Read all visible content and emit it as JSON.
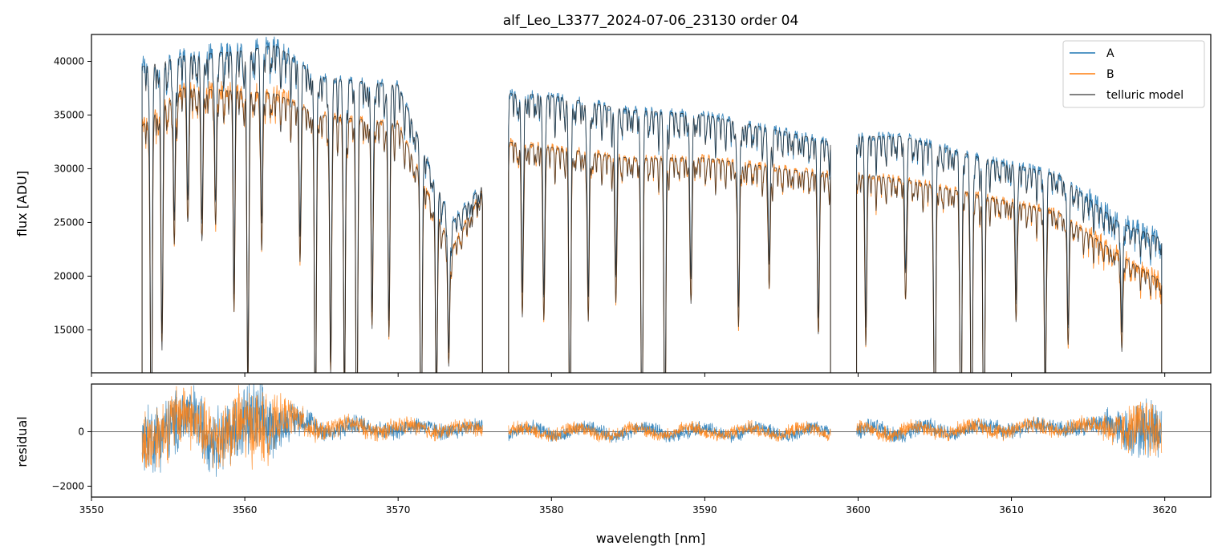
{
  "chart_data": [
    {
      "type": "line",
      "title": "alf_Leo_L3377_2024-07-06_23130  order 04",
      "xlabel": "",
      "ylabel": "flux [ADU]",
      "xlim": [
        3550,
        3623
      ],
      "ylim": [
        11000,
        42500
      ],
      "xticks": [
        3550,
        3560,
        3570,
        3580,
        3590,
        3600,
        3610,
        3620
      ],
      "yticks": [
        15000,
        20000,
        25000,
        30000,
        35000,
        40000
      ],
      "legend": {
        "placement": "top-right",
        "entries": [
          "A",
          "B",
          "telluric model"
        ]
      },
      "segments": [
        [
          3553.3,
          3575.5
        ],
        [
          3577.2,
          3598.2
        ],
        [
          3599.9,
          3619.8
        ]
      ],
      "continuum": {
        "A": {
          "x": [
            3553.3,
            3556,
            3560,
            3562,
            3565,
            3570,
            3573.5,
            3575.5,
            3577.2,
            3580,
            3585,
            3590,
            3595,
            3598.2,
            3599.9,
            3603,
            3608,
            3613,
            3617,
            3619.8
          ],
          "y": [
            39500,
            40500,
            41000,
            41500,
            38500,
            37800,
            25000,
            28500,
            37000,
            36800,
            35500,
            35000,
            33500,
            32500,
            33000,
            33000,
            31000,
            29500,
            25000,
            23500
          ]
        },
        "B": {
          "x": [
            3553.3,
            3556,
            3560,
            3562,
            3565,
            3570,
            3573.5,
            3575.5,
            3577.2,
            3580,
            3585,
            3590,
            3595,
            3598.2,
            3599.9,
            3603,
            3608,
            3613,
            3617,
            3619.8
          ],
          "y": [
            34000,
            37500,
            37200,
            37000,
            35000,
            34200,
            22500,
            28000,
            32500,
            32000,
            31000,
            31000,
            30000,
            29500,
            29500,
            29000,
            27500,
            26000,
            22000,
            19500
          ]
        }
      },
      "absorption_lines": [
        {
          "x": 3553.9,
          "depth": 0.75
        },
        {
          "x": 3554.6,
          "depth": 0.5
        },
        {
          "x": 3555.4,
          "depth": 0.3
        },
        {
          "x": 3556.3,
          "depth": 0.25
        },
        {
          "x": 3557.2,
          "depth": 0.3
        },
        {
          "x": 3558.1,
          "depth": 0.25
        },
        {
          "x": 3559.3,
          "depth": 0.4
        },
        {
          "x": 3560.2,
          "depth": 0.6
        },
        {
          "x": 3561.1,
          "depth": 0.3
        },
        {
          "x": 3563.6,
          "depth": 0.3
        },
        {
          "x": 3564.6,
          "depth": 0.7
        },
        {
          "x": 3565.6,
          "depth": 0.55
        },
        {
          "x": 3566.5,
          "depth": 0.6
        },
        {
          "x": 3567.3,
          "depth": 0.75
        },
        {
          "x": 3568.3,
          "depth": 0.45
        },
        {
          "x": 3569.4,
          "depth": 0.45
        },
        {
          "x": 3571.5,
          "depth": 0.75
        },
        {
          "x": 3572.5,
          "depth": 0.55
        },
        {
          "x": 3573.3,
          "depth": 0.4
        },
        {
          "x": 3578.1,
          "depth": 0.4
        },
        {
          "x": 3579.5,
          "depth": 0.4
        },
        {
          "x": 3581.2,
          "depth": 0.75
        },
        {
          "x": 3582.4,
          "depth": 0.4
        },
        {
          "x": 3584.2,
          "depth": 0.35
        },
        {
          "x": 3585.9,
          "depth": 0.7
        },
        {
          "x": 3587.4,
          "depth": 0.7
        },
        {
          "x": 3589.1,
          "depth": 0.35
        },
        {
          "x": 3592.2,
          "depth": 0.4
        },
        {
          "x": 3594.2,
          "depth": 0.3
        },
        {
          "x": 3597.4,
          "depth": 0.4
        },
        {
          "x": 3600.5,
          "depth": 0.4
        },
        {
          "x": 3603.1,
          "depth": 0.3
        },
        {
          "x": 3605.0,
          "depth": 0.75
        },
        {
          "x": 3606.7,
          "depth": 0.75
        },
        {
          "x": 3607.4,
          "depth": 0.75
        },
        {
          "x": 3608.2,
          "depth": 0.75
        },
        {
          "x": 3610.3,
          "depth": 0.3
        },
        {
          "x": 3612.2,
          "depth": 0.55
        },
        {
          "x": 3613.7,
          "depth": 0.35
        },
        {
          "x": 3617.2,
          "depth": 0.3
        }
      ],
      "series": [
        {
          "name": "A",
          "color": "#1f77b4"
        },
        {
          "name": "B",
          "color": "#ff7f0e"
        },
        {
          "name": "telluric model",
          "color": "#303030"
        }
      ]
    },
    {
      "type": "line",
      "xlabel": "wavelength [nm]",
      "ylabel": "residual",
      "xlim": [
        3550,
        3623
      ],
      "ylim": [
        -2400,
        1750
      ],
      "xticks": [
        3550,
        3560,
        3570,
        3580,
        3590,
        3600,
        3610,
        3620
      ],
      "yticks": [
        -2000,
        0
      ],
      "zero_line": true,
      "noise_envelope": {
        "x": [
          3553.3,
          3556,
          3558,
          3561,
          3562.5,
          3565,
          3575.5,
          3577.2,
          3598.2,
          3599.9,
          3615,
          3617.5,
          3619.5,
          3619.8
        ],
        "amp": [
          1600,
          1400,
          1500,
          1700,
          900,
          450,
          350,
          300,
          300,
          350,
          380,
          1000,
          1500,
          800
        ],
        "offset": [
          -400,
          700,
          -200,
          400,
          500,
          200,
          100,
          0,
          0,
          0,
          250,
          200,
          0,
          0
        ]
      },
      "series": [
        {
          "name": "A",
          "color": "#1f77b4"
        },
        {
          "name": "B",
          "color": "#ff7f0e"
        }
      ]
    }
  ]
}
